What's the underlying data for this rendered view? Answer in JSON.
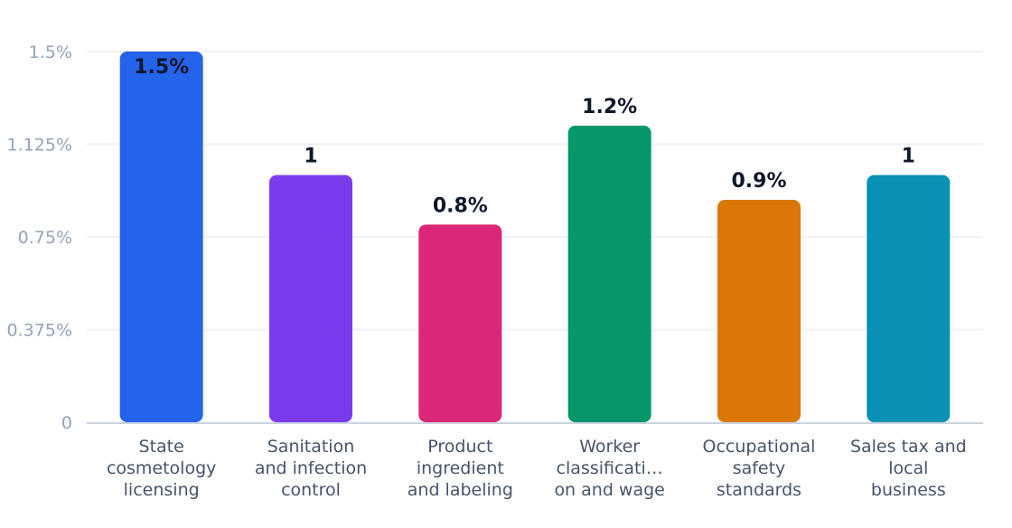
{
  "chart_data": {
    "type": "bar",
    "categories": [
      [
        "State",
        "cosmetology",
        "licensing"
      ],
      [
        "Sanitation",
        "and infection",
        "control"
      ],
      [
        "Product",
        "ingredient",
        "and labeling"
      ],
      [
        "Worker",
        "classificati…",
        "on and wage"
      ],
      [
        "Occupational",
        "safety",
        "standards"
      ],
      [
        "Sales tax and",
        "local",
        "business"
      ]
    ],
    "values": [
      1.5,
      1.0,
      0.8,
      1.2,
      0.9,
      1.0
    ],
    "data_labels": [
      "1.5%",
      "1",
      "0.8%",
      "1.2%",
      "0.9%",
      "1"
    ],
    "colors": [
      "#2563eb",
      "#7c3aed",
      "#db2777",
      "#059669",
      "#d97706",
      "#0891b2"
    ],
    "ylim": [
      0,
      1.5
    ],
    "yticks": [
      {
        "value": 0,
        "label": "0"
      },
      {
        "value": 0.375,
        "label": "0.375%"
      },
      {
        "value": 0.75,
        "label": "0.75%"
      },
      {
        "value": 1.125,
        "label": "1.125%"
      },
      {
        "value": 1.5,
        "label": "1.5%"
      }
    ],
    "title": "",
    "xlabel": "",
    "ylabel": "",
    "grid": true,
    "legend": "none"
  }
}
